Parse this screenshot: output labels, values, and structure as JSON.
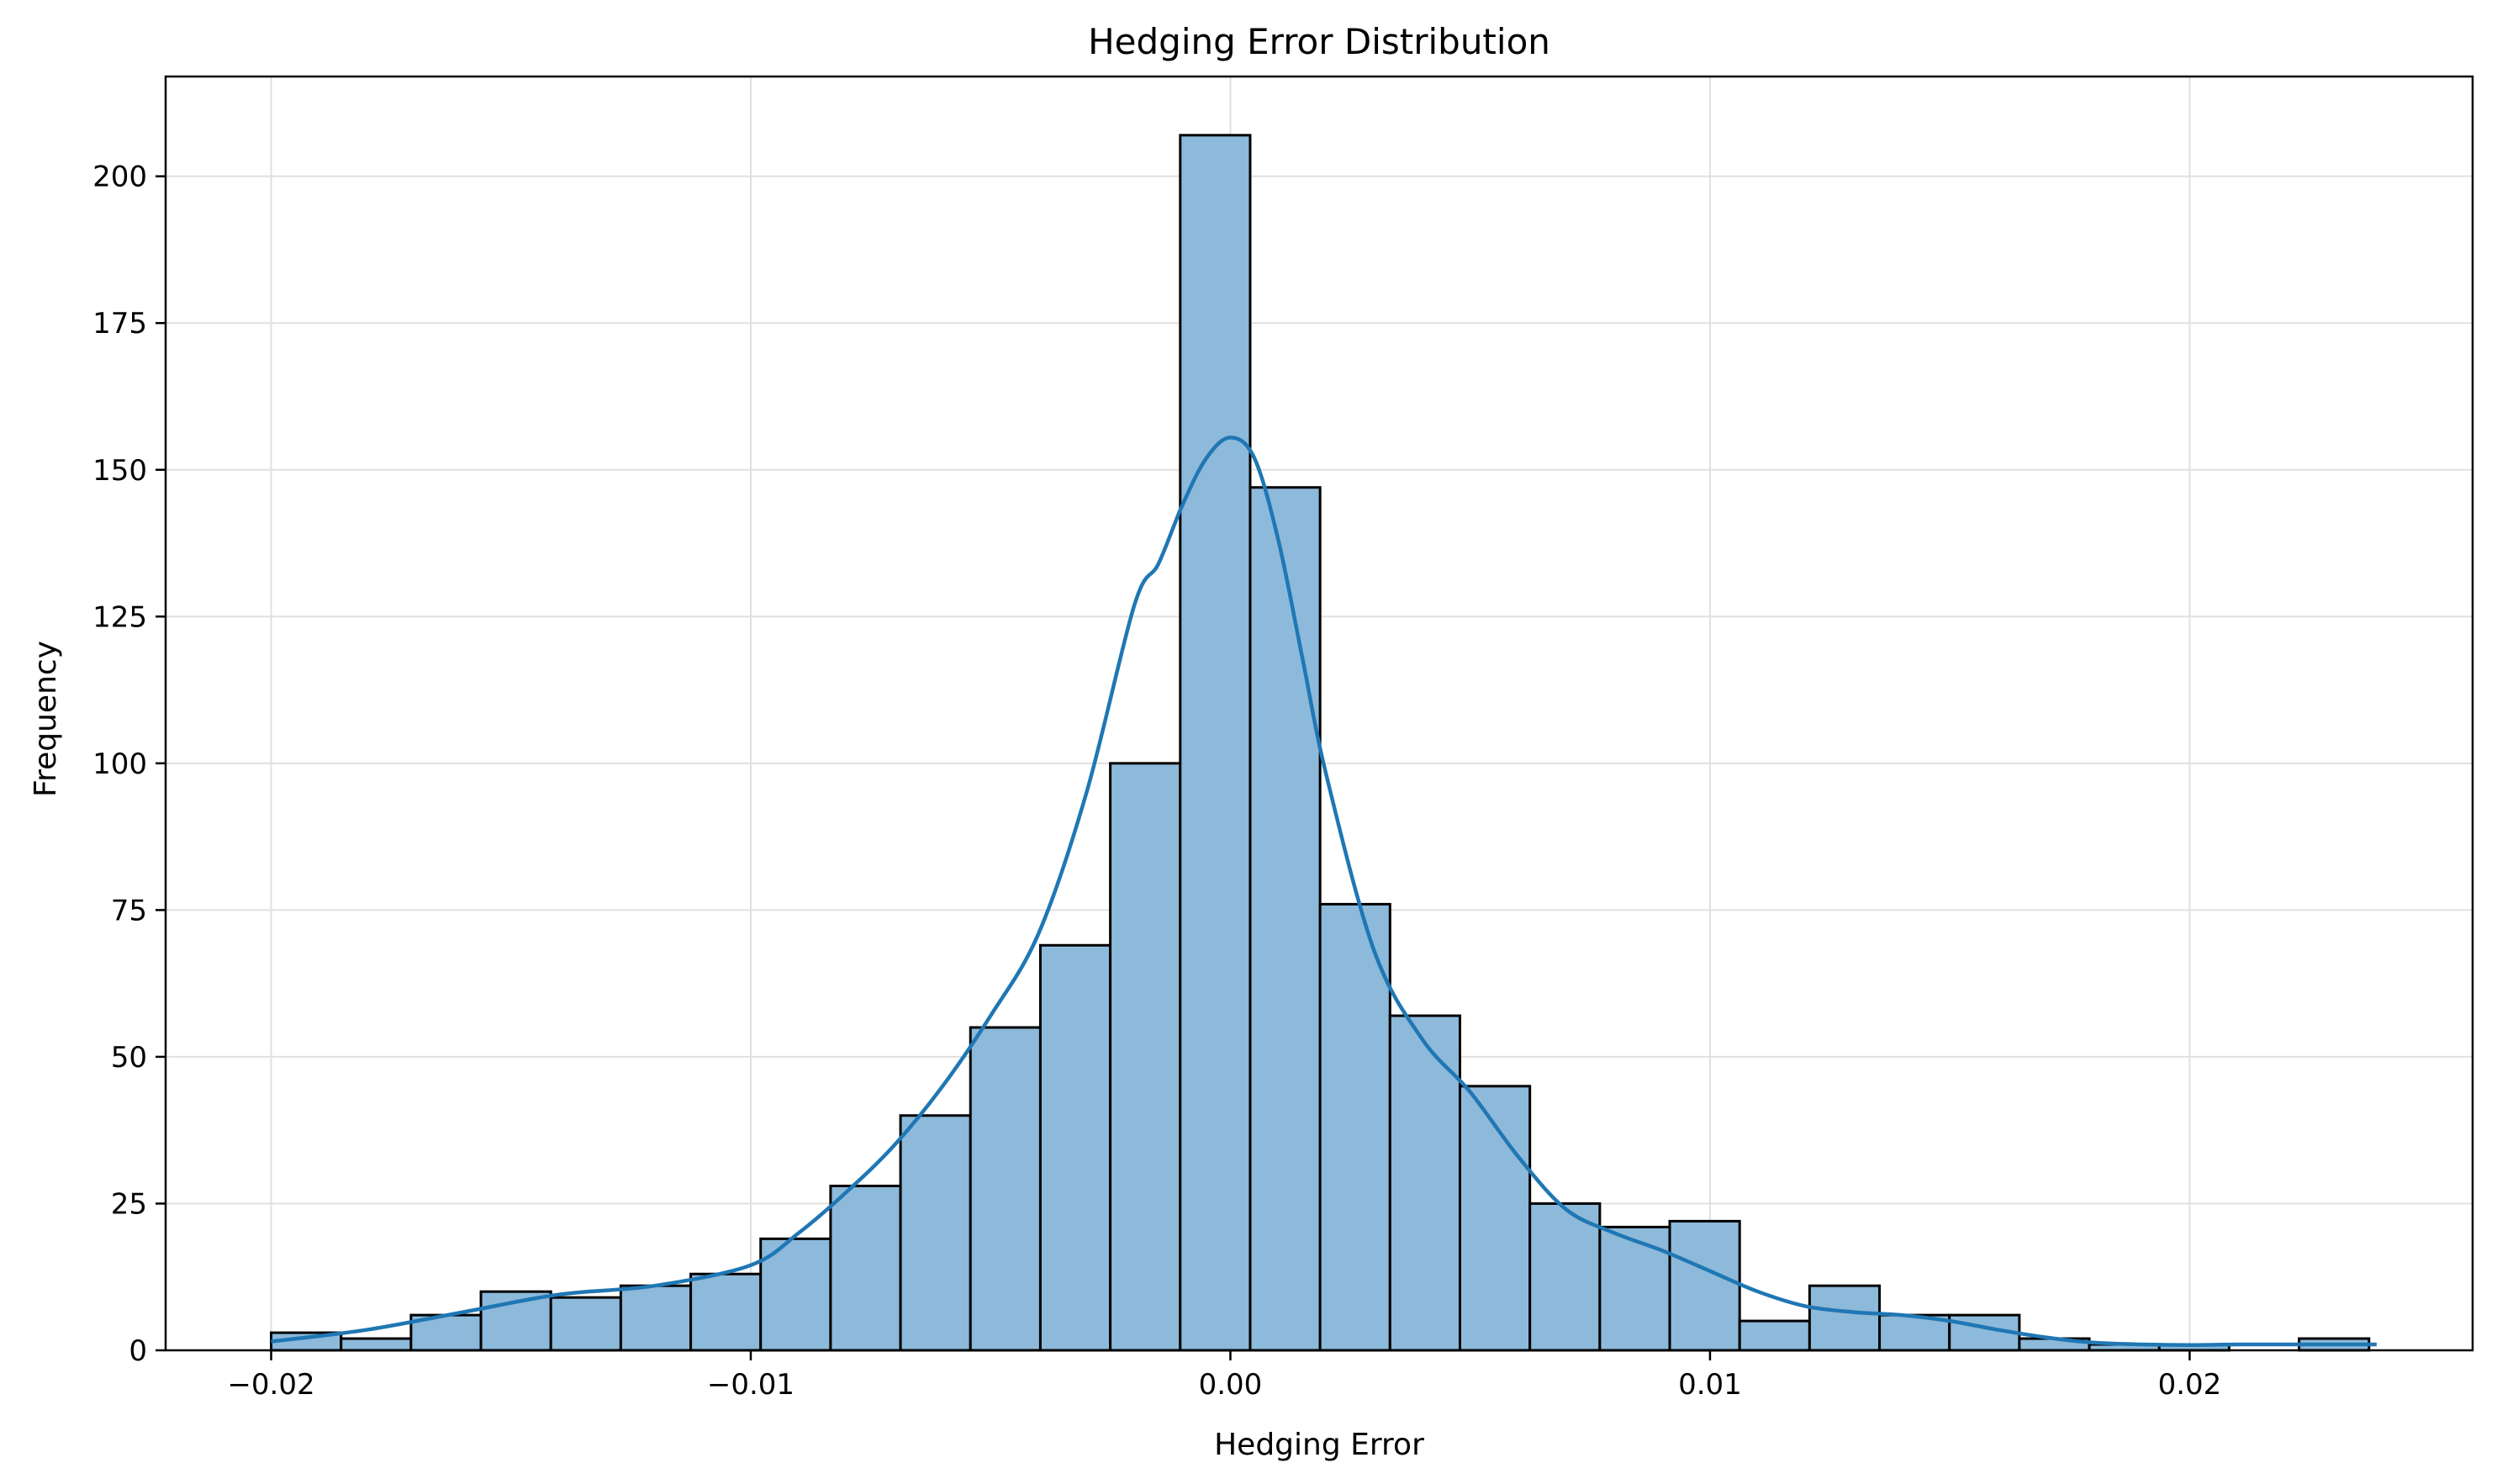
{
  "chart_data": {
    "type": "bar",
    "title": "Hedging Error Distribution",
    "xlabel": "Hedging Error",
    "ylabel": "Frequency",
    "xlim": [
      -0.0222,
      0.0259
    ],
    "ylim": [
      0,
      217
    ],
    "x_ticks": [
      -0.02,
      -0.01,
      0.0,
      0.01,
      0.02
    ],
    "x_tick_labels": [
      "−0.02",
      "−0.01",
      "0.00",
      "0.01",
      "0.02"
    ],
    "y_ticks": [
      0,
      25,
      50,
      75,
      100,
      125,
      150,
      175,
      200
    ],
    "y_tick_labels": [
      "0",
      "25",
      "50",
      "75",
      "100",
      "125",
      "150",
      "175",
      "200"
    ],
    "grid": true,
    "bin_start": -0.02,
    "bin_width": 0.001458,
    "values": [
      3,
      2,
      6,
      10,
      9,
      11,
      13,
      19,
      28,
      40,
      55,
      69,
      100,
      207,
      147,
      76,
      57,
      45,
      25,
      21,
      22,
      5,
      11,
      6,
      6,
      2,
      1,
      1,
      0,
      2
    ],
    "kde": {
      "color": "#1f77b4",
      "x": [
        -0.02,
        -0.018,
        -0.016,
        -0.014,
        -0.012,
        -0.01,
        -0.009,
        -0.008,
        -0.007,
        -0.006,
        -0.005,
        -0.004,
        -0.003,
        -0.002,
        -0.0015,
        -0.001,
        -0.0005,
        0.0,
        0.0005,
        0.001,
        0.0015,
        0.002,
        0.003,
        0.004,
        0.005,
        0.006,
        0.007,
        0.008,
        0.009,
        0.01,
        0.011,
        0.012,
        0.013,
        0.014,
        0.015,
        0.016,
        0.017,
        0.018,
        0.019,
        0.02,
        0.021,
        0.022,
        0.023,
        0.0239
      ],
      "y": [
        1.5,
        3.5,
        6.5,
        9.5,
        11,
        14.5,
        20,
        27,
        35,
        45,
        57,
        71,
        95,
        127,
        134,
        144,
        152,
        155.5,
        152,
        138,
        118,
        98,
        68,
        53,
        44,
        33,
        24,
        20,
        17,
        13.5,
        10,
        7.5,
        6.5,
        6,
        5,
        3.5,
        2.2,
        1.3,
        1,
        0.9,
        1,
        1,
        1,
        1
      ]
    },
    "colors": {
      "bar_fill": "#8db9da",
      "bar_edge": "#000000",
      "kde": "#1f77b4"
    }
  }
}
